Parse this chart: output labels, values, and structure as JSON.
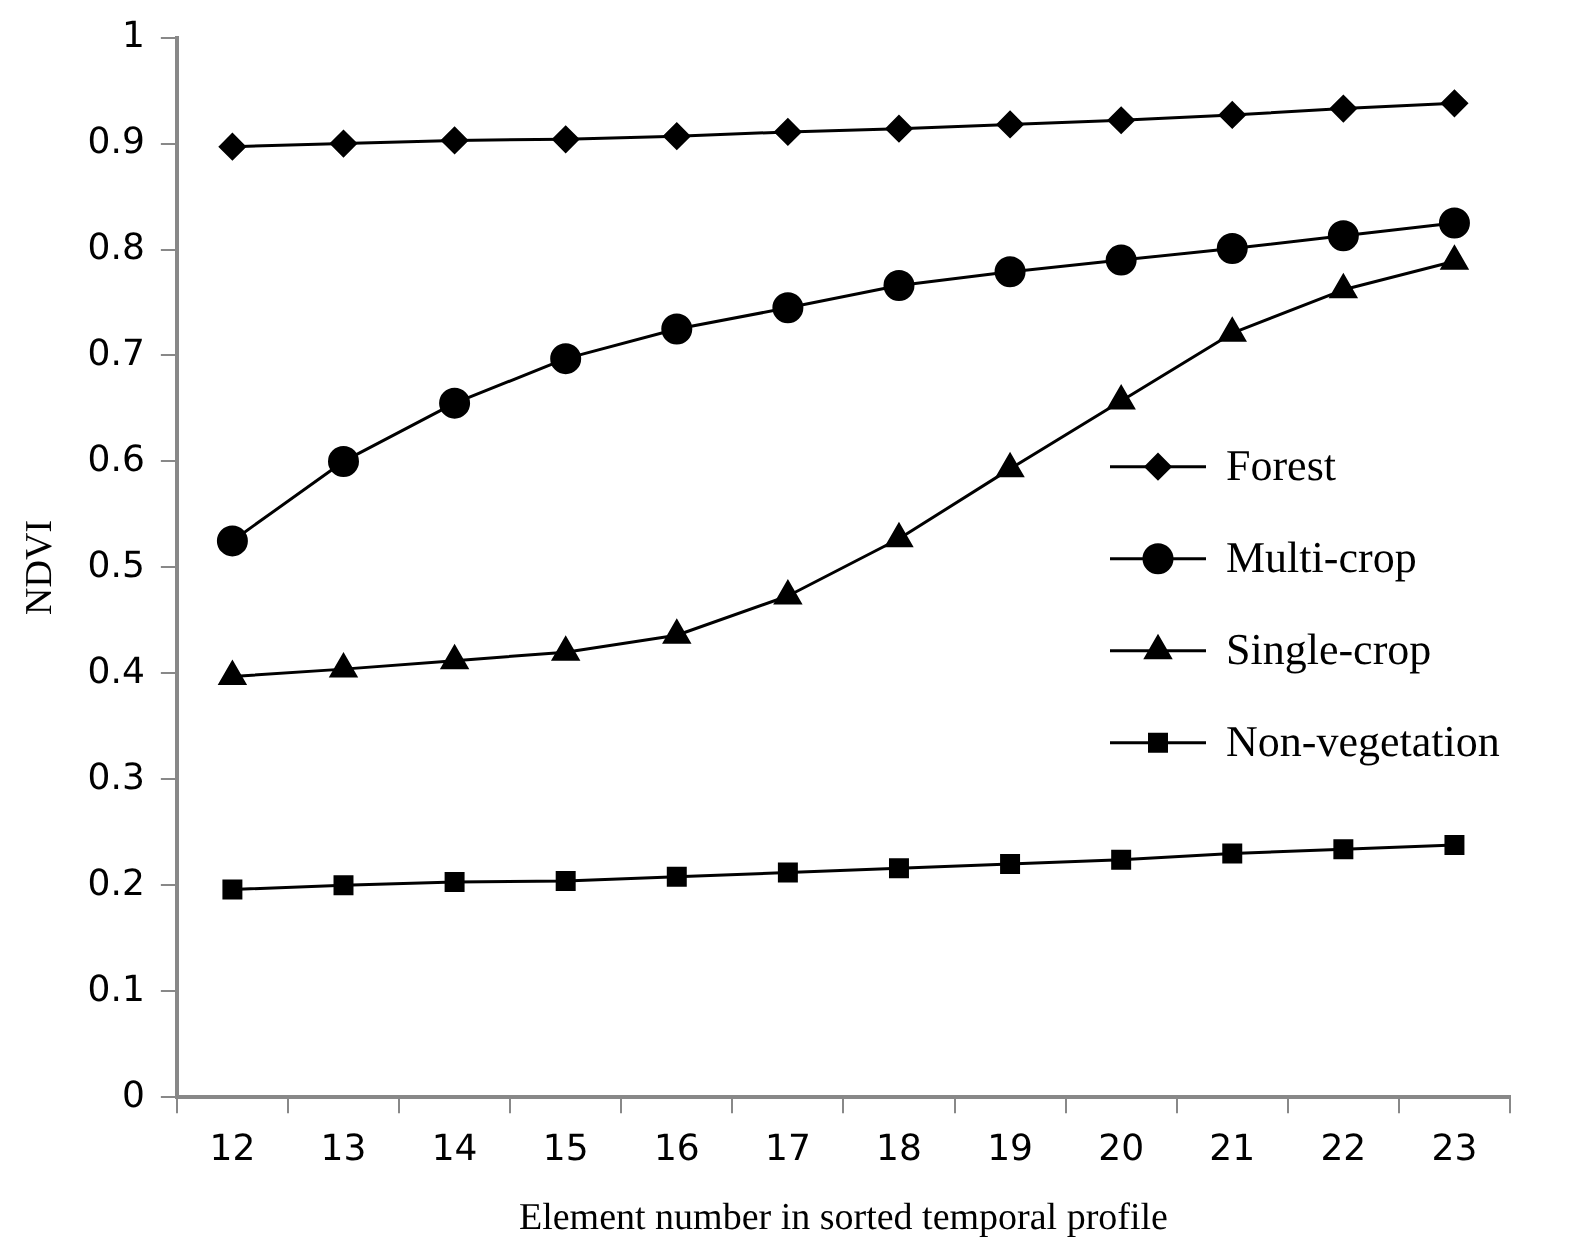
{
  "chart_data": {
    "type": "line",
    "xlabel": "Element number in sorted temporal profile",
    "ylabel": "NDVI",
    "categories": [
      "12",
      "13",
      "14",
      "15",
      "16",
      "17",
      "18",
      "19",
      "20",
      "21",
      "22",
      "23"
    ],
    "series": [
      {
        "name": "Forest",
        "color": "#000000",
        "marker": "diamond",
        "values": [
          0.897,
          0.9,
          0.903,
          0.904,
          0.907,
          0.911,
          0.914,
          0.918,
          0.922,
          0.927,
          0.933,
          0.938
        ]
      },
      {
        "name": "Multi-crop",
        "color": "#000000",
        "marker": "circle",
        "values": [
          0.525,
          0.6,
          0.655,
          0.697,
          0.725,
          0.745,
          0.766,
          0.779,
          0.79,
          0.801,
          0.813,
          0.825
        ]
      },
      {
        "name": "Single-crop",
        "color": "#000000",
        "marker": "triangle",
        "values": [
          0.397,
          0.404,
          0.412,
          0.42,
          0.436,
          0.473,
          0.527,
          0.593,
          0.657,
          0.721,
          0.762,
          0.789
        ]
      },
      {
        "name": "Non-vegetation",
        "color": "#000000",
        "marker": "square",
        "values": [
          0.196,
          0.2,
          0.203,
          0.204,
          0.208,
          0.212,
          0.216,
          0.22,
          0.224,
          0.23,
          0.234,
          0.238
        ]
      }
    ],
    "ylim": [
      0,
      1
    ],
    "yticks": [
      0,
      0.1,
      0.2,
      0.3,
      0.4,
      0.5,
      0.6,
      0.7,
      0.8,
      0.9,
      1
    ],
    "grid": false,
    "legend": "right",
    "line_style": "solid"
  }
}
